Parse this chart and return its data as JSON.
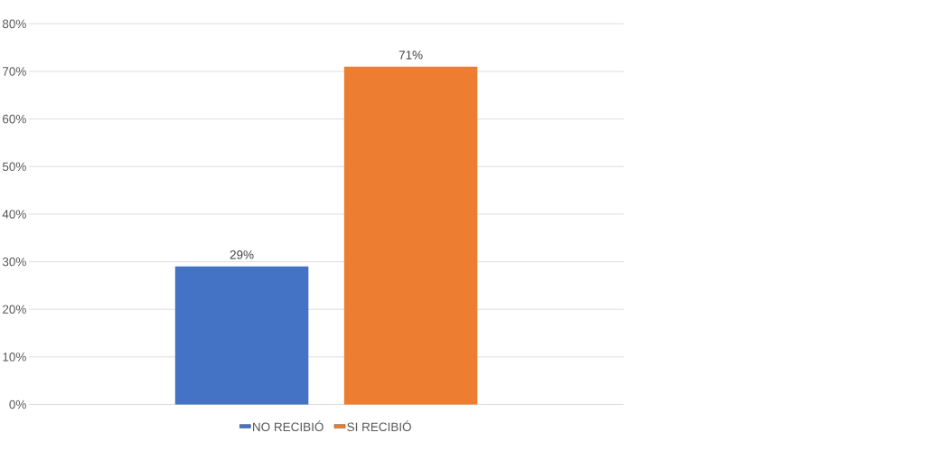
{
  "chart_data": {
    "type": "bar",
    "categories": [
      null
    ],
    "series": [
      {
        "name": "NO RECIBIÓ",
        "color": "#4472c4",
        "values": [
          29
        ],
        "value_labels": [
          "29%"
        ]
      },
      {
        "name": "SI RECIBIÓ",
        "color": "#ed7d31",
        "values": [
          71
        ],
        "value_labels": [
          "71%"
        ]
      }
    ],
    "ylim": [
      0,
      80
    ],
    "yticks": [
      {
        "value": 0,
        "label": "0%"
      },
      {
        "value": 10,
        "label": "10%"
      },
      {
        "value": 20,
        "label": "20%"
      },
      {
        "value": 30,
        "label": "30%"
      },
      {
        "value": 40,
        "label": "40%"
      },
      {
        "value": 50,
        "label": "50%"
      },
      {
        "value": 60,
        "label": "60%"
      },
      {
        "value": 70,
        "label": "70%"
      },
      {
        "value": 80,
        "label": "80%"
      }
    ],
    "grid": "y",
    "legend": "bottom"
  }
}
